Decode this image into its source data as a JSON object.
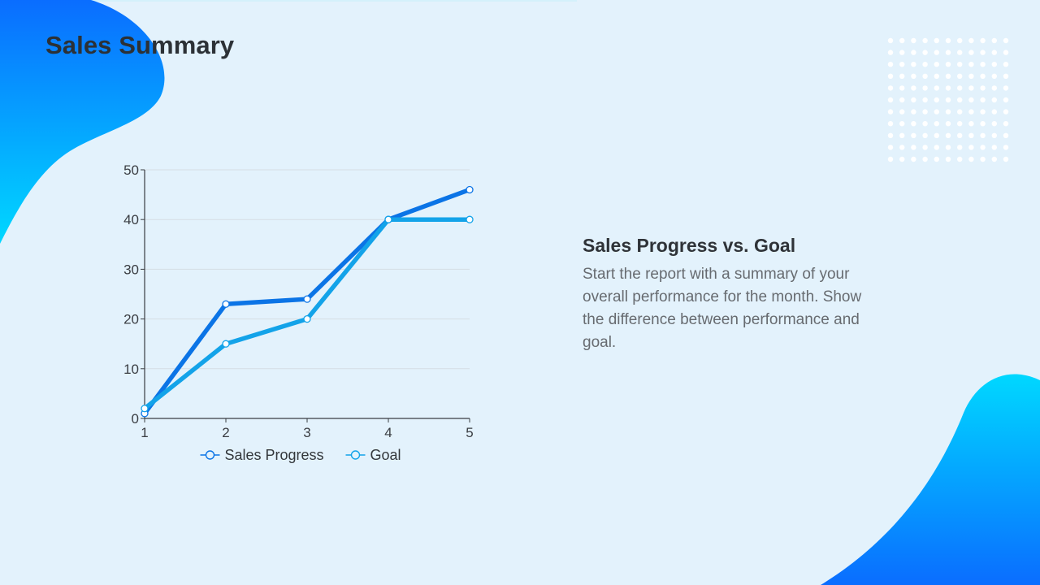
{
  "slide": {
    "title": "Sales Summary",
    "text_block": {
      "heading": "Sales Progress vs. Goal",
      "body": "Start the report with a summary of your overall performance for the month. Show the difference between performance and goal."
    }
  },
  "theme": {
    "background": "#e3f2fc",
    "accent_dark_blue": "#0b74e6",
    "accent_light_blue": "#13a3e9",
    "blob_gradient_top": "#0a6dff",
    "blob_gradient_bottom": "#00d8ff",
    "dot_color": "#ffffff"
  },
  "chart_data": {
    "type": "line",
    "x": [
      1,
      2,
      3,
      4,
      5
    ],
    "xlim": [
      1,
      5
    ],
    "ylim": [
      0,
      50
    ],
    "yticks": [
      0,
      10,
      20,
      30,
      40,
      50
    ],
    "grid": true,
    "legend_position": "bottom",
    "series": [
      {
        "name": "Sales Progress",
        "color": "#0b74e6",
        "values": [
          1,
          23,
          24,
          40,
          46
        ]
      },
      {
        "name": "Goal",
        "color": "#13a3e9",
        "values": [
          2,
          15,
          20,
          40,
          40
        ]
      }
    ]
  }
}
